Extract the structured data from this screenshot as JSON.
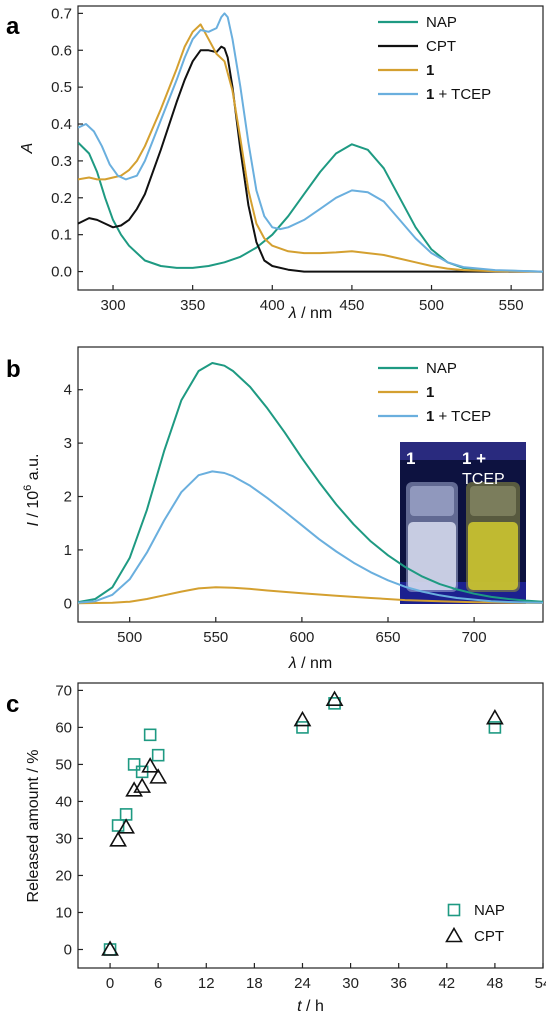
{
  "chart_data": [
    {
      "panel_label": "a",
      "type": "line",
      "xlabel_symbol": "λ",
      "xlabel_unit": " / nm",
      "ylabel": "A",
      "xlim": [
        278,
        570
      ],
      "ylim": [
        -0.05,
        0.72
      ],
      "xticks": [
        "300",
        "350",
        "400",
        "450",
        "500",
        "550"
      ],
      "yticks": [
        "0.0",
        "0.1",
        "0.2",
        "0.3",
        "0.4",
        "0.5",
        "0.6",
        "0.7"
      ],
      "grid": false,
      "legend_position": "top-right",
      "series": [
        {
          "name": "NAP",
          "bold": "",
          "suffix": "NAP",
          "color": "#1e9a82",
          "x": [
            278,
            285,
            290,
            295,
            300,
            305,
            310,
            320,
            330,
            340,
            350,
            360,
            370,
            380,
            390,
            400,
            410,
            420,
            430,
            440,
            450,
            460,
            470,
            480,
            490,
            500,
            510,
            520,
            540,
            570
          ],
          "y": [
            0.35,
            0.32,
            0.27,
            0.2,
            0.14,
            0.1,
            0.07,
            0.03,
            0.015,
            0.01,
            0.01,
            0.015,
            0.025,
            0.04,
            0.065,
            0.1,
            0.15,
            0.21,
            0.27,
            0.32,
            0.345,
            0.33,
            0.28,
            0.2,
            0.12,
            0.06,
            0.025,
            0.01,
            0.003,
            0.0
          ]
        },
        {
          "name": "CPT",
          "bold": "",
          "suffix": "CPT",
          "color": "#111111",
          "x": [
            278,
            285,
            290,
            295,
            300,
            305,
            310,
            315,
            320,
            330,
            340,
            345,
            350,
            355,
            360,
            365,
            368,
            370,
            372,
            375,
            380,
            385,
            390,
            395,
            400,
            410,
            420,
            450,
            500,
            570
          ],
          "y": [
            0.13,
            0.145,
            0.14,
            0.13,
            0.12,
            0.125,
            0.14,
            0.17,
            0.21,
            0.33,
            0.46,
            0.52,
            0.57,
            0.6,
            0.6,
            0.595,
            0.61,
            0.605,
            0.58,
            0.5,
            0.33,
            0.18,
            0.08,
            0.03,
            0.015,
            0.005,
            0.0,
            0.0,
            0.0,
            0.0
          ]
        },
        {
          "name": "1",
          "bold": "1",
          "suffix": "",
          "color": "#d4a030",
          "x": [
            278,
            285,
            290,
            295,
            300,
            305,
            310,
            315,
            320,
            330,
            340,
            345,
            350,
            355,
            360,
            365,
            370,
            375,
            380,
            385,
            390,
            395,
            400,
            410,
            420,
            430,
            440,
            450,
            460,
            470,
            480,
            490,
            500,
            510,
            520,
            540,
            570
          ],
          "y": [
            0.25,
            0.255,
            0.25,
            0.25,
            0.255,
            0.26,
            0.275,
            0.3,
            0.34,
            0.44,
            0.55,
            0.61,
            0.65,
            0.67,
            0.63,
            0.59,
            0.57,
            0.49,
            0.36,
            0.22,
            0.13,
            0.09,
            0.07,
            0.055,
            0.05,
            0.05,
            0.052,
            0.055,
            0.05,
            0.045,
            0.035,
            0.025,
            0.015,
            0.008,
            0.004,
            0.001,
            0.0
          ]
        },
        {
          "name": "1 + TCEP",
          "bold": "1",
          "suffix": " + TCEP",
          "color": "#6aafde",
          "x": [
            278,
            283,
            288,
            293,
            298,
            303,
            308,
            315,
            320,
            330,
            340,
            345,
            350,
            355,
            360,
            365,
            368,
            370,
            372,
            375,
            380,
            385,
            390,
            395,
            400,
            405,
            410,
            420,
            430,
            440,
            450,
            460,
            470,
            480,
            490,
            500,
            510,
            520,
            540,
            570
          ],
          "y": [
            0.39,
            0.4,
            0.38,
            0.34,
            0.29,
            0.26,
            0.25,
            0.26,
            0.3,
            0.41,
            0.52,
            0.58,
            0.63,
            0.655,
            0.65,
            0.66,
            0.69,
            0.7,
            0.69,
            0.63,
            0.5,
            0.35,
            0.22,
            0.15,
            0.12,
            0.115,
            0.12,
            0.14,
            0.17,
            0.2,
            0.22,
            0.215,
            0.19,
            0.14,
            0.09,
            0.05,
            0.025,
            0.012,
            0.004,
            0.0
          ]
        }
      ]
    },
    {
      "panel_label": "b",
      "type": "line",
      "xlabel_symbol": "λ",
      "xlabel_unit": " / nm",
      "ylabel_symbol": "I",
      "ylabel_pre": " / 10",
      "ylabel_sup": "6",
      "ylabel_post": " a.u.",
      "xlim": [
        470,
        740
      ],
      "ylim": [
        -0.35,
        4.8
      ],
      "xticks": [
        "500",
        "550",
        "600",
        "650",
        "700"
      ],
      "yticks": [
        "0",
        "1",
        "2",
        "3",
        "4"
      ],
      "grid": false,
      "legend_position": "top-right",
      "inset_photo": {
        "left_label": "1",
        "right_label_line1": "1 +",
        "right_label_line2": "TCEP"
      },
      "series": [
        {
          "name": "NAP",
          "bold": "",
          "suffix": "NAP",
          "color": "#1e9a82",
          "x": [
            470,
            480,
            490,
            500,
            510,
            520,
            530,
            540,
            548,
            555,
            560,
            570,
            580,
            590,
            600,
            610,
            620,
            630,
            640,
            650,
            660,
            670,
            680,
            690,
            700,
            710,
            720,
            730,
            740
          ],
          "y": [
            0.02,
            0.08,
            0.3,
            0.85,
            1.75,
            2.85,
            3.8,
            4.35,
            4.5,
            4.45,
            4.35,
            4.05,
            3.65,
            3.2,
            2.72,
            2.27,
            1.85,
            1.48,
            1.16,
            0.9,
            0.68,
            0.5,
            0.36,
            0.26,
            0.18,
            0.12,
            0.08,
            0.05,
            0.03
          ]
        },
        {
          "name": "1",
          "bold": "1",
          "suffix": "",
          "color": "#d4a030",
          "x": [
            470,
            490,
            500,
            510,
            520,
            530,
            540,
            550,
            560,
            570,
            580,
            600,
            620,
            640,
            660,
            680,
            700,
            720,
            740
          ],
          "y": [
            0.0,
            0.01,
            0.03,
            0.08,
            0.15,
            0.22,
            0.28,
            0.3,
            0.29,
            0.27,
            0.24,
            0.19,
            0.14,
            0.1,
            0.06,
            0.04,
            0.02,
            0.01,
            0.005
          ]
        },
        {
          "name": "1 + TCEP",
          "bold": "1",
          "suffix": " + TCEP",
          "color": "#6aafde",
          "x": [
            470,
            480,
            490,
            500,
            510,
            520,
            530,
            540,
            548,
            555,
            560,
            570,
            580,
            590,
            600,
            610,
            620,
            630,
            640,
            650,
            660,
            670,
            680,
            690,
            700,
            710,
            720,
            730,
            740
          ],
          "y": [
            0.01,
            0.04,
            0.16,
            0.45,
            0.95,
            1.55,
            2.08,
            2.4,
            2.47,
            2.44,
            2.38,
            2.2,
            1.97,
            1.72,
            1.46,
            1.2,
            0.97,
            0.76,
            0.58,
            0.43,
            0.31,
            0.22,
            0.15,
            0.1,
            0.07,
            0.04,
            0.025,
            0.015,
            0.01
          ]
        }
      ]
    },
    {
      "panel_label": "c",
      "type": "scatter",
      "xlabel_symbol": "t",
      "xlabel_unit": " / h",
      "ylabel": "Released amount / %",
      "xlim": [
        -4,
        54
      ],
      "ylim": [
        -5,
        72
      ],
      "xticks": [
        "0",
        "6",
        "12",
        "18",
        "24",
        "30",
        "36",
        "42",
        "48",
        "54"
      ],
      "yticks": [
        "0",
        "10",
        "20",
        "30",
        "40",
        "50",
        "60",
        "70"
      ],
      "grid": false,
      "legend_position": "bottom-right",
      "series": [
        {
          "name": "NAP",
          "marker": "square",
          "color": "#1e9a82",
          "x": [
            0,
            1,
            2,
            3,
            4,
            5,
            6,
            24,
            28,
            48
          ],
          "y": [
            0,
            33.5,
            36.5,
            50,
            48,
            58,
            52.5,
            60,
            66.5,
            60
          ]
        },
        {
          "name": "CPT",
          "marker": "triangle",
          "color": "#111111",
          "x": [
            0,
            1,
            2,
            3,
            4,
            5,
            6,
            24,
            28,
            48
          ],
          "y": [
            0,
            29.5,
            33,
            43,
            44,
            49.5,
            46.5,
            62,
            67.5,
            62.5
          ]
        }
      ]
    }
  ]
}
